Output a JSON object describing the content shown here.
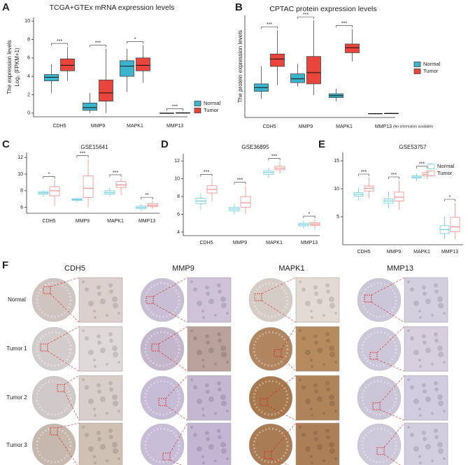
{
  "chart_data": [
    {
      "type": "box",
      "panel_label": "A",
      "title": "TCGA+GTEx mRNA expression levels",
      "ylabel": [
        "The expression levels",
        "Log₂ (FPKM+1)"
      ],
      "categories": [
        "CDH5",
        "MMP9",
        "MAPK1",
        "MMP13"
      ],
      "series": [
        {
          "name": "Normal",
          "color": "#3bb4cc",
          "values": [
            {
              "min": 2.2,
              "q1": 3.5,
              "median": 3.9,
              "q3": 4.2,
              "max": 5.3
            },
            {
              "min": 0,
              "q1": 0.3,
              "median": 0.6,
              "q3": 1.1,
              "max": 2.2
            },
            {
              "min": 2.3,
              "q1": 4.0,
              "median": 5.1,
              "q3": 5.7,
              "max": 7.0
            },
            {
              "min": 0,
              "q1": 0,
              "median": 0,
              "q3": 0,
              "max": 0.05
            }
          ]
        },
        {
          "name": "Tumor",
          "color": "#e8463c",
          "values": [
            {
              "min": 3.5,
              "q1": 4.6,
              "median": 5.2,
              "q3": 5.9,
              "max": 7.2
            },
            {
              "min": 0,
              "q1": 1.3,
              "median": 2.2,
              "q3": 3.6,
              "max": 7.0
            },
            {
              "min": 3.3,
              "q1": 4.6,
              "median": 5.2,
              "q3": 6.0,
              "max": 7.4
            },
            {
              "min": 0,
              "q1": 0,
              "median": 0,
              "q3": 0.05,
              "max": 0.1
            }
          ]
        }
      ],
      "significance": [
        "***",
        "***",
        "*",
        "***"
      ],
      "ylim": [
        -0.4,
        10.4
      ],
      "yticks": [
        0,
        2,
        4,
        6,
        8,
        10
      ],
      "box_style": "filled",
      "legend": "right"
    },
    {
      "type": "box",
      "panel_label": "B",
      "title": "CPTAC protein expression levels",
      "ylabel": [
        "The protein expression levels"
      ],
      "categories": [
        "CDH5",
        "MMP9",
        "MAPK1",
        "MMP13"
      ],
      "annotation": "(No information available)",
      "series": [
        {
          "name": "Normal",
          "color": "#3bb4cc",
          "values": [
            {
              "min": 1.2,
              "q1": 1.8,
              "median": 2.1,
              "q3": 2.4,
              "max": 3.8
            },
            {
              "min": 2.2,
              "q1": 2.5,
              "median": 2.8,
              "q3": 3.2,
              "max": 4.0
            },
            {
              "min": 1.0,
              "q1": 1.3,
              "median": 1.45,
              "q3": 1.6,
              "max": 2.0
            },
            {
              "min": 0,
              "q1": 0,
              "median": 0,
              "q3": 0.02,
              "max": 0.05
            }
          ]
        },
        {
          "name": "Tumor",
          "color": "#e8463c",
          "values": [
            {
              "min": 2.3,
              "q1": 3.8,
              "median": 4.4,
              "q3": 4.8,
              "max": 6.7
            },
            {
              "min": 1.5,
              "q1": 2.4,
              "median": 3.3,
              "q3": 4.6,
              "max": 7.5
            },
            {
              "min": 4.2,
              "q1": 4.9,
              "median": 5.3,
              "q3": 5.6,
              "max": 6.8
            },
            {
              "min": 0,
              "q1": 0,
              "median": 0.02,
              "q3": 0.04,
              "max": 0.08
            }
          ]
        }
      ],
      "significance": [
        "***",
        "***",
        "***",
        null
      ],
      "ylim": [
        -0.3,
        7.9
      ],
      "box_style": "filled",
      "legend": "right"
    },
    {
      "type": "box",
      "panel_label": "C",
      "title": "GSE15641",
      "categories": [
        "CDH5",
        "MMP9",
        "MAPK1",
        "MMP13"
      ],
      "series": [
        {
          "color": "#56c5e0",
          "values": [
            {
              "min": 7.3,
              "q1": 7.6,
              "median": 7.75,
              "q3": 7.9,
              "max": 8.1
            },
            {
              "min": 6.6,
              "q1": 6.85,
              "median": 6.95,
              "q3": 7.05,
              "max": 7.2
            },
            {
              "min": 7.3,
              "q1": 7.6,
              "median": 7.8,
              "q3": 8.0,
              "max": 8.4
            },
            {
              "min": 5.6,
              "q1": 5.85,
              "median": 6.0,
              "q3": 6.15,
              "max": 6.4
            }
          ]
        },
        {
          "color": "#f47c74",
          "values": [
            {
              "min": 6.2,
              "q1": 7.4,
              "median": 8.0,
              "q3": 8.5,
              "max": 9.3
            },
            {
              "min": 6.0,
              "q1": 7.2,
              "median": 8.3,
              "q3": 9.8,
              "max": 11.8
            },
            {
              "min": 7.5,
              "q1": 8.4,
              "median": 8.7,
              "q3": 9.1,
              "max": 9.5
            },
            {
              "min": 5.8,
              "q1": 6.1,
              "median": 6.25,
              "q3": 6.45,
              "max": 6.8
            }
          ]
        }
      ],
      "significance": [
        "*",
        "***",
        "***",
        "**"
      ],
      "ylim": [
        5.3,
        12.6
      ],
      "yticks": [
        6,
        8,
        10,
        12
      ],
      "box_style": "outline"
    },
    {
      "type": "box",
      "panel_label": "D",
      "title": "GSE36895",
      "categories": [
        "CDH5",
        "MMP9",
        "MAPK1",
        "MMP13"
      ],
      "series": [
        {
          "color": "#56c5e0",
          "values": [
            {
              "min": 6.5,
              "q1": 7.2,
              "median": 7.5,
              "q3": 7.8,
              "max": 8.4
            },
            {
              "min": 6.0,
              "q1": 6.4,
              "median": 6.6,
              "q3": 6.8,
              "max": 7.2
            },
            {
              "min": 10.1,
              "q1": 10.5,
              "median": 10.7,
              "q3": 10.9,
              "max": 11.2
            },
            {
              "min": 4.4,
              "q1": 4.7,
              "median": 4.85,
              "q3": 5.0,
              "max": 5.3
            }
          ]
        },
        {
          "color": "#f47c74",
          "values": [
            {
              "min": 7.4,
              "q1": 8.4,
              "median": 8.8,
              "q3": 9.2,
              "max": 10.1
            },
            {
              "min": 6.0,
              "q1": 6.8,
              "median": 7.3,
              "q3": 8.0,
              "max": 9.2
            },
            {
              "min": 10.6,
              "q1": 11.0,
              "median": 11.2,
              "q3": 11.4,
              "max": 11.9
            },
            {
              "min": 4.3,
              "q1": 4.75,
              "median": 4.9,
              "q3": 5.05,
              "max": 5.4
            }
          ]
        }
      ],
      "significance": [
        "***",
        "***",
        "***",
        "*"
      ],
      "ylim": [
        3.6,
        12.8
      ],
      "yticks": [
        4,
        6,
        8,
        10,
        12
      ],
      "box_style": "outline"
    },
    {
      "type": "box",
      "panel_label": "E",
      "title": "GSE53757",
      "categories": [
        "CDH5",
        "MMP9",
        "MAPK1",
        "MMP13"
      ],
      "series": [
        {
          "name": "Normal",
          "color": "#56c5e0",
          "values": [
            {
              "min": 7.9,
              "q1": 8.7,
              "median": 9.0,
              "q3": 9.3,
              "max": 10.2
            },
            {
              "min": 6.5,
              "q1": 7.4,
              "median": 7.8,
              "q3": 8.2,
              "max": 9.5
            },
            {
              "min": 11.4,
              "q1": 11.9,
              "median": 12.1,
              "q3": 12.3,
              "max": 12.7
            },
            {
              "min": 1.0,
              "q1": 2.0,
              "median": 2.7,
              "q3": 3.4,
              "max": 5.0
            }
          ]
        },
        {
          "name": "Tumor",
          "color": "#f47c74",
          "values": [
            {
              "min": 8.3,
              "q1": 9.6,
              "median": 10.1,
              "q3": 10.5,
              "max": 12.0
            },
            {
              "min": 6.2,
              "q1": 7.8,
              "median": 8.5,
              "q3": 9.4,
              "max": 11.5
            },
            {
              "min": 11.7,
              "q1": 12.3,
              "median": 12.6,
              "q3": 12.9,
              "max": 13.4
            },
            {
              "min": 1.0,
              "q1": 2.3,
              "median": 3.2,
              "q3": 4.9,
              "max": 7.5
            }
          ]
        }
      ],
      "significance": [
        "***",
        "***",
        "***",
        "*"
      ],
      "ylim": [
        0,
        16.5
      ],
      "yticks": [
        5,
        10,
        15
      ],
      "box_style": "outline",
      "legend": "top-right"
    }
  ],
  "ihc": {
    "panel_label": "F",
    "columns": [
      "CDH5",
      "MMP9",
      "MAPK1",
      "MMP13"
    ],
    "rows": [
      "Normal",
      "Tumor 1",
      "Tumor 2",
      "Tumor 3"
    ]
  }
}
